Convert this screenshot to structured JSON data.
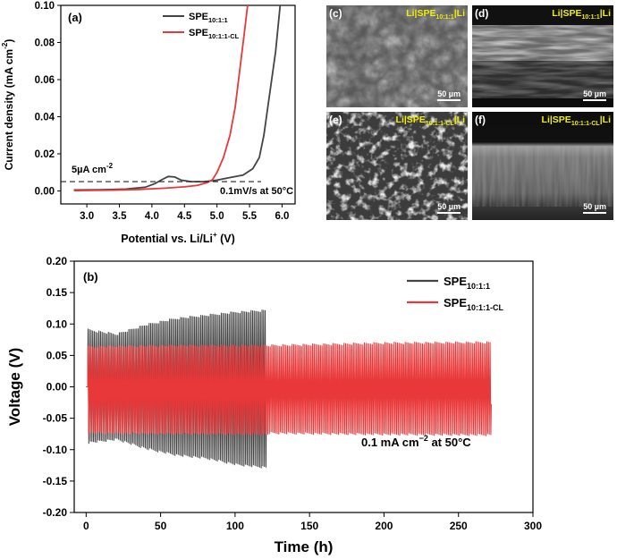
{
  "colors": {
    "spe_base": "#444444",
    "spe_cl": "#e8383a",
    "axis": "#000000",
    "sem_label": "#f2ef00"
  },
  "chart_data": [
    {
      "id": "a",
      "type": "line",
      "panel_label": "(a)",
      "xlabel": "Potential vs. Li/Li",
      "xlabel_sup": "+",
      "xlabel_unit": "(V)",
      "ylabel": "Current density (mA cm",
      "ylabel_sup": "-2",
      "ylabel_end": ")",
      "xlim": [
        2.6,
        6.2
      ],
      "ylim": [
        -0.007,
        0.1
      ],
      "xticks": [
        "3.0",
        "3.5",
        "4.0",
        "4.5",
        "5.0",
        "5.5",
        "6.0"
      ],
      "xtick_values": [
        3.0,
        3.5,
        4.0,
        4.5,
        5.0,
        5.5,
        6.0
      ],
      "yticks": [
        "0.00",
        "0.02",
        "0.04",
        "0.06",
        "0.08",
        "0.10"
      ],
      "ytick_values": [
        0.0,
        0.02,
        0.04,
        0.06,
        0.08,
        0.1
      ],
      "threshold": {
        "value": 0.005,
        "label": "5µA cm",
        "label_sup": "-2"
      },
      "annotation": "0.1mV/s at 50°C",
      "series": [
        {
          "name": "SPE",
          "subscript": "10:1:1",
          "color": "#444444",
          "points": [
            [
              2.8,
              0.0005
            ],
            [
              3.2,
              0.0006
            ],
            [
              3.6,
              0.001
            ],
            [
              3.9,
              0.002
            ],
            [
              4.05,
              0.004
            ],
            [
              4.15,
              0.006
            ],
            [
              4.25,
              0.0078
            ],
            [
              4.35,
              0.0075
            ],
            [
              4.45,
              0.0058
            ],
            [
              4.6,
              0.005
            ],
            [
              4.8,
              0.005
            ],
            [
              5.0,
              0.0058
            ],
            [
              5.2,
              0.0072
            ],
            [
              5.4,
              0.0085
            ],
            [
              5.55,
              0.012
            ],
            [
              5.65,
              0.018
            ],
            [
              5.72,
              0.03
            ],
            [
              5.8,
              0.05
            ],
            [
              5.9,
              0.075
            ],
            [
              5.97,
              0.1
            ]
          ]
        },
        {
          "name": "SPE",
          "subscript": "10:1:1-CL",
          "color": "#e8383a",
          "points": [
            [
              2.8,
              0.0002
            ],
            [
              3.4,
              0.0004
            ],
            [
              3.8,
              0.0008
            ],
            [
              4.2,
              0.0015
            ],
            [
              4.5,
              0.0022
            ],
            [
              4.7,
              0.003
            ],
            [
              4.85,
              0.0045
            ],
            [
              4.93,
              0.006
            ],
            [
              5.0,
              0.01
            ],
            [
              5.1,
              0.018
            ],
            [
              5.2,
              0.03
            ],
            [
              5.28,
              0.045
            ],
            [
              5.35,
              0.065
            ],
            [
              5.42,
              0.085
            ],
            [
              5.47,
              0.1
            ]
          ]
        }
      ]
    },
    {
      "id": "b",
      "type": "line",
      "panel_label": "(b)",
      "xlabel": "Time (h)",
      "ylabel": "Voltage (V)",
      "xlim": [
        -8,
        300
      ],
      "ylim": [
        -0.2,
        0.2
      ],
      "xticks": [
        "0",
        "50",
        "100",
        "150",
        "200",
        "250",
        "300"
      ],
      "xtick_values": [
        0,
        50,
        100,
        150,
        200,
        250,
        300
      ],
      "yticks": [
        "0.20",
        "0.15",
        "0.10",
        "0.05",
        "0.00",
        "-0.05",
        "-0.10",
        "-0.15",
        "-0.20"
      ],
      "ytick_values": [
        0.2,
        0.15,
        0.1,
        0.05,
        0.0,
        -0.05,
        -0.1,
        -0.15,
        -0.2
      ],
      "annotation": "0.1 mA cm",
      "annotation_sup": "−2",
      "annotation_end": " at 50°C",
      "series": [
        {
          "name": "SPE",
          "subscript": "10:1:1",
          "color": "#444444",
          "t_end": 121,
          "envelope": [
            [
              1,
              0.092,
              -0.09
            ],
            [
              20,
              0.085,
              -0.085
            ],
            [
              40,
              0.1,
              -0.1
            ],
            [
              60,
              0.11,
              -0.11
            ],
            [
              80,
              0.115,
              -0.115
            ],
            [
              100,
              0.12,
              -0.125
            ],
            [
              121,
              0.123,
              -0.13
            ]
          ]
        },
        {
          "name": "SPE",
          "subscript": "10:1:1-CL",
          "color": "#e8383a",
          "t_end": 272,
          "envelope": [
            [
              1,
              0.065,
              -0.075
            ],
            [
              60,
              0.067,
              -0.076
            ],
            [
              121,
              0.067,
              -0.077
            ],
            [
              122,
              0.067,
              -0.075
            ],
            [
              200,
              0.071,
              -0.077
            ],
            [
              272,
              0.072,
              -0.078
            ]
          ]
        }
      ]
    }
  ],
  "sem_images": [
    {
      "panel": "(c)",
      "label": "Li|SPE",
      "sub": "10:1:1",
      "label_end": "|Li",
      "scale": "50 µm"
    },
    {
      "panel": "(d)",
      "label": "Li|SPE",
      "sub": "10:1:1",
      "label_end": "|Li",
      "scale": "50 µm"
    },
    {
      "panel": "(e)",
      "label": "Li|SPE",
      "sub": "10:1:1-CL",
      "label_end": "|Li",
      "scale": "50 µm"
    },
    {
      "panel": "(f)",
      "label": "Li|SPE",
      "sub": "10:1:1-CL",
      "label_end": "|Li",
      "scale": "50 µm"
    }
  ]
}
